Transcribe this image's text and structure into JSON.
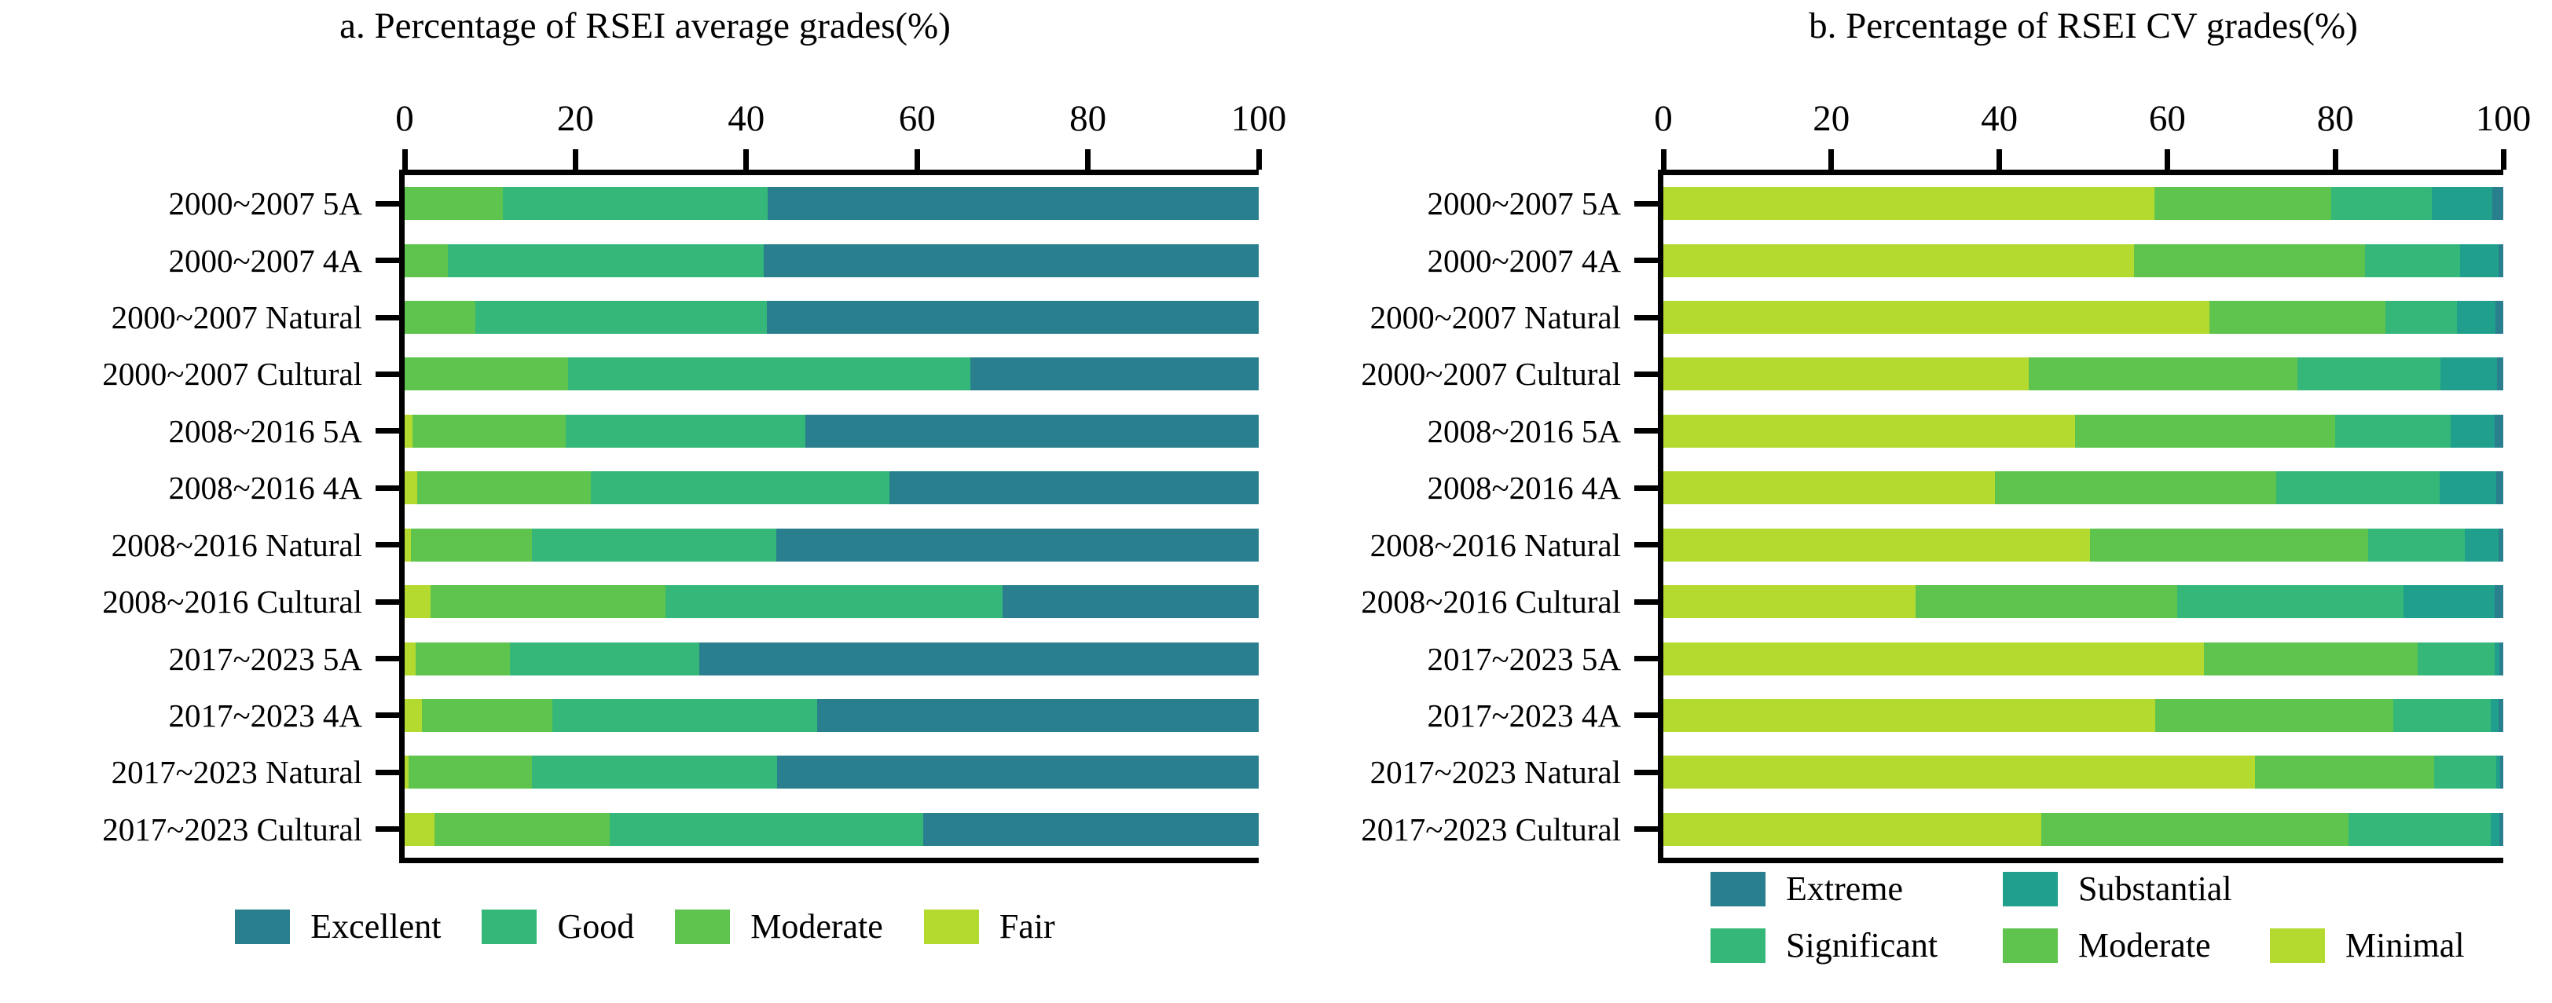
{
  "figure": {
    "background": "#ffffff",
    "text_color": "#000000"
  },
  "palette": {
    "dark_teal": "#2A7F8E",
    "teal": "#20A08C",
    "sea_green": "#35B779",
    "medium_green": "#5EC44D",
    "yellow_green": "#B5DA2F"
  },
  "chart_data": [
    {
      "id": "a",
      "type": "bar",
      "subtype": "horizontal_stacked_percentage",
      "title": "a. Percentage of RSEI average grades(%)",
      "xlabel": "",
      "ylabel": "",
      "xlim": [
        0,
        100
      ],
      "x_axis": {
        "position": "top",
        "ticks": [
          0,
          20,
          40,
          60,
          80,
          100
        ]
      },
      "grid": false,
      "legend_position": "bottom",
      "categories": [
        "2000~2007 5A",
        "2000~2007 4A",
        "2000~2007 Natural",
        "2000~2007 Cultural",
        "2008~2016 5A",
        "2008~2016 4A",
        "2008~2016 Natural",
        "2008~2016 Cultural",
        "2017~2023 5A",
        "2017~2023 4A",
        "2017~2023 Natural",
        "2017~2023 Cultural"
      ],
      "series": [
        {
          "name": "Fair",
          "color": "#B5DA2F",
          "values": [
            0.0,
            0.0,
            0.0,
            0.0,
            0.9,
            1.5,
            0.7,
            3.0,
            1.3,
            2.0,
            0.5,
            3.5
          ]
        },
        {
          "name": "Moderate",
          "color": "#5EC44D",
          "values": [
            11.5,
            5.1,
            8.3,
            19.1,
            18.0,
            20.3,
            14.2,
            27.5,
            11.0,
            15.3,
            14.4,
            20.5
          ]
        },
        {
          "name": "Good",
          "color": "#35B779",
          "values": [
            31.0,
            36.9,
            34.1,
            47.1,
            28.0,
            35.0,
            28.6,
            39.5,
            22.2,
            31.0,
            28.7,
            36.7
          ]
        },
        {
          "name": "Excellent",
          "color": "#2A7F8E",
          "values": [
            57.5,
            58.0,
            57.6,
            33.8,
            53.1,
            43.2,
            56.5,
            30.0,
            65.5,
            51.7,
            56.4,
            39.3
          ]
        }
      ],
      "legend": {
        "rows": [
          [
            {
              "label": "Excellent",
              "color": "#2A7F8E"
            },
            {
              "label": "Good",
              "color": "#35B779"
            },
            {
              "label": "Moderate",
              "color": "#5EC44D"
            },
            {
              "label": "Fair",
              "color": "#B5DA2F"
            }
          ]
        ]
      }
    },
    {
      "id": "b",
      "type": "bar",
      "subtype": "horizontal_stacked_percentage",
      "title": "b. Percentage of RSEI CV grades(%)",
      "xlabel": "",
      "ylabel": "",
      "xlim": [
        0,
        100
      ],
      "x_axis": {
        "position": "top",
        "ticks": [
          0,
          20,
          40,
          60,
          80,
          100
        ]
      },
      "grid": false,
      "legend_position": "bottom",
      "categories": [
        "2000~2007 5A",
        "2000~2007 4A",
        "2000~2007 Natural",
        "2000~2007 Cultural",
        "2008~2016 5A",
        "2008~2016 4A",
        "2008~2016 Natural",
        "2008~2016 Cultural",
        "2017~2023 5A",
        "2017~2023 4A",
        "2017~2023 Natural",
        "2017~2023 Cultural"
      ],
      "series": [
        {
          "name": "Minimal",
          "color": "#B5DA2F",
          "values": [
            58.5,
            56.0,
            65.0,
            43.5,
            49.0,
            39.5,
            50.8,
            30.0,
            64.4,
            58.6,
            70.4,
            45.0
          ]
        },
        {
          "name": "Moderate",
          "color": "#5EC44D",
          "values": [
            21.0,
            27.5,
            21.0,
            32.0,
            31.0,
            33.5,
            33.1,
            31.2,
            25.4,
            28.3,
            21.4,
            36.6
          ]
        },
        {
          "name": "Significant",
          "color": "#35B779",
          "values": [
            12.0,
            11.4,
            8.5,
            17.0,
            13.7,
            19.4,
            11.5,
            26.9,
            9.2,
            11.6,
            7.4,
            16.9
          ]
        },
        {
          "name": "Substantial",
          "color": "#20A08C",
          "values": [
            7.2,
            4.5,
            4.6,
            6.8,
            5.3,
            6.8,
            4.0,
            10.9,
            0.5,
            0.9,
            0.4,
            1.0
          ]
        },
        {
          "name": "Extreme",
          "color": "#2A7F8E",
          "values": [
            1.3,
            0.6,
            0.9,
            0.7,
            1.0,
            0.8,
            0.6,
            1.0,
            0.5,
            0.6,
            0.4,
            0.5
          ]
        }
      ],
      "legend": {
        "rows": [
          [
            {
              "label": "Extreme",
              "color": "#2A7F8E"
            },
            {
              "label": "Substantial",
              "color": "#20A08C"
            }
          ],
          [
            {
              "label": "Significant",
              "color": "#35B779"
            },
            {
              "label": "Moderate",
              "color": "#5EC44D"
            },
            {
              "label": "Minimal",
              "color": "#B5DA2F"
            }
          ]
        ]
      }
    }
  ]
}
